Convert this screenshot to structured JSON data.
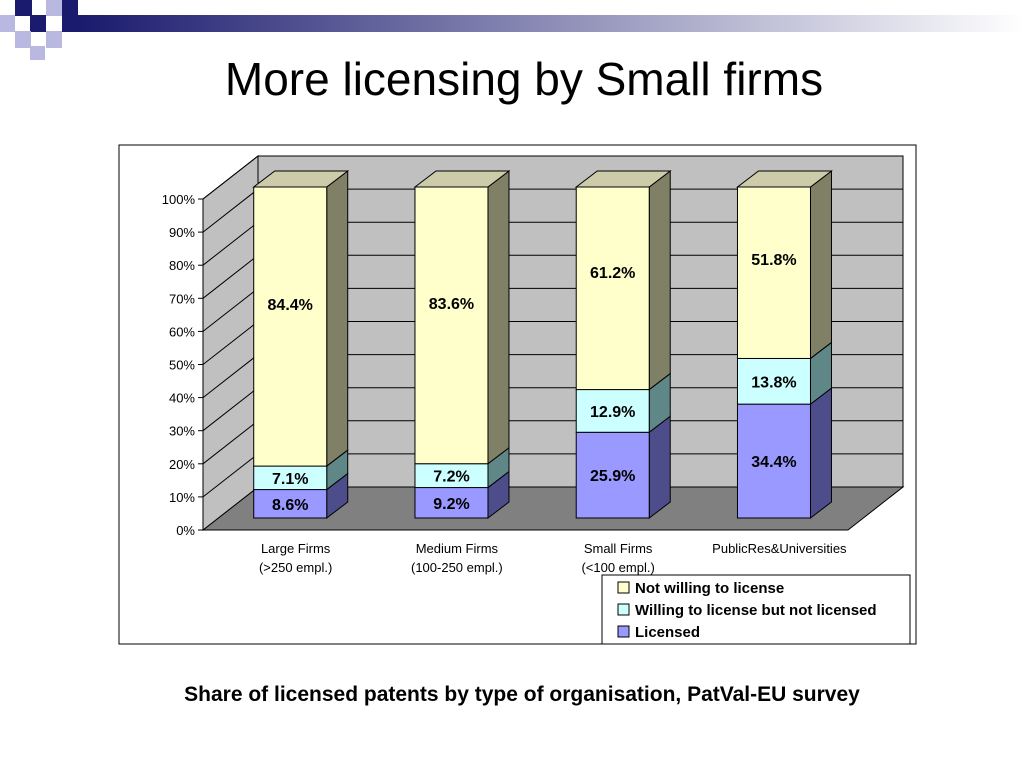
{
  "slide": {
    "title": "More licensing by Small firms",
    "caption": "Share of licensed patents by type of organisation, PatVal-EU survey"
  },
  "colors": {
    "decor_dark": "#1a1a6e",
    "decor_light": "#b8b8e0",
    "wall": "#c0c0c0",
    "floor": "#808080"
  },
  "chart_data": {
    "type": "bar",
    "stacked": true,
    "percent_axis": true,
    "categories": [
      [
        "Large Firms",
        "(>250  empl.)"
      ],
      [
        "Medium Firms",
        "(100-250  empl.)"
      ],
      [
        "Small Firms",
        "(<100  empl.)"
      ],
      [
        "PublicRes&Universities",
        ""
      ]
    ],
    "series": [
      {
        "name": "Licensed",
        "values": [
          8.6,
          9.2,
          25.9,
          34.4
        ],
        "labels": [
          "8.6%",
          "9.2%",
          "25.9%",
          "34.4%"
        ],
        "color": "#9999ff",
        "side": "#4d4d8c",
        "top": "#6b6bb3"
      },
      {
        "name": "Willing to license but not licensed",
        "values": [
          7.1,
          7.2,
          12.9,
          13.8
        ],
        "labels": [
          "7.1%",
          "7.2%",
          "12.9%",
          "13.8%"
        ],
        "color": "#ccffff",
        "side": "#5f8787",
        "top": "#a3cccc"
      },
      {
        "name": "Not willing to license",
        "values": [
          84.4,
          83.6,
          61.2,
          51.8
        ],
        "labels": [
          "84.4%",
          "83.6%",
          "61.2%",
          "51.8%"
        ],
        "color": "#ffffcc",
        "side": "#808066",
        "top": "#ccccaa"
      }
    ],
    "yticks": [
      "0%",
      "10%",
      "20%",
      "30%",
      "40%",
      "50%",
      "60%",
      "70%",
      "80%",
      "90%",
      "100%"
    ],
    "ylim": [
      0,
      100
    ],
    "legend": {
      "position": "bottom-right",
      "entries": [
        "Not willing to license",
        "Willing to license but not licensed",
        "Licensed"
      ]
    },
    "grid": true
  }
}
